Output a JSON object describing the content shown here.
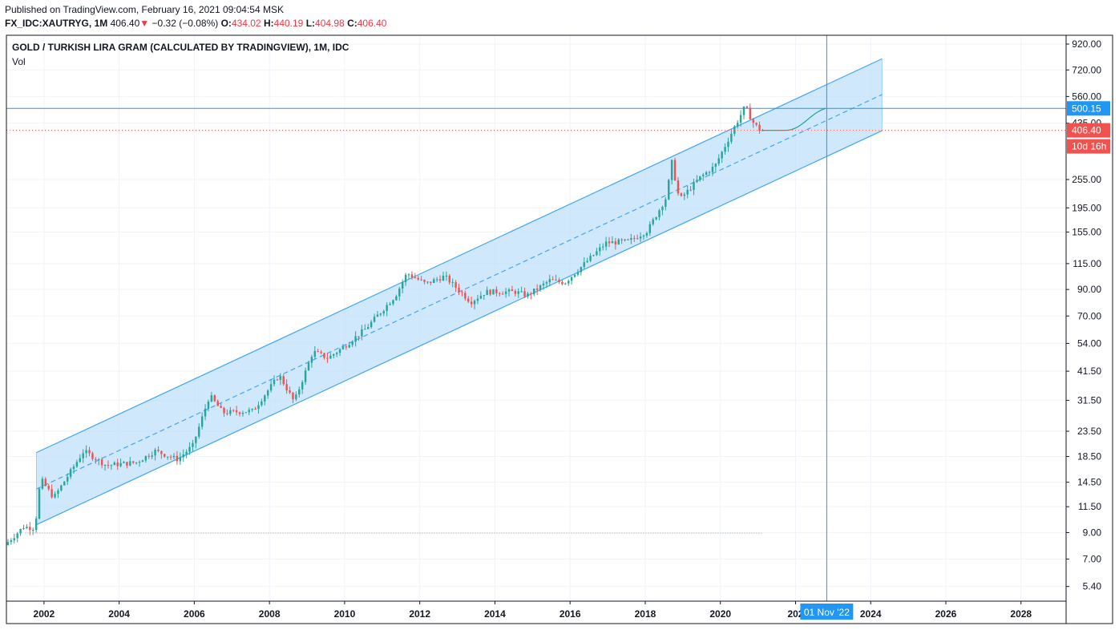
{
  "header": {
    "published": "Published on TradingView.com, February 16, 2021 09:04:54 MSK",
    "symbol": "FX_IDC:XAUTRYG, 1M",
    "last": "406.40",
    "change": "−0.32 (−0.08%)",
    "o_label": "O:",
    "o_value": "434.02",
    "h_label": "H:",
    "h_value": "440.19",
    "l_label": "L:",
    "l_value": "404.98",
    "c_label": "C:",
    "c_value": "406.40"
  },
  "chart_title": "GOLD / TURKISH LIRA GRAM (CALCULATED BY TRADINGVIEW), 1M, IDC",
  "volume_label": "Vol",
  "colors": {
    "up": "#26a69a",
    "down": "#ef5350",
    "channel_line": "#42a5f5",
    "channel_fill": "#bbdefb",
    "crosshair": "#2196f3",
    "grid": "#f0f3fa",
    "price_tag_last": "#ef5350",
    "price_tag_cross": "#2196f3"
  },
  "chart_data": {
    "type": "candlestick",
    "y_scale": "log",
    "ylim": [
      4.7,
      1000
    ],
    "x_range": [
      2001.0,
      2029.2
    ],
    "x_ticks": [
      "2002",
      "2004",
      "2006",
      "2008",
      "2010",
      "2012",
      "2014",
      "2016",
      "2018",
      "2020",
      "202",
      "2024",
      "2026",
      "2028"
    ],
    "y_ticks": [
      "920.00",
      "720.00",
      "560.00",
      "435.00",
      "255.00",
      "195.00",
      "155.00",
      "115.00",
      "90.00",
      "70.00",
      "54.00",
      "41.50",
      "31.50",
      "23.50",
      "18.50",
      "14.50",
      "11.50",
      "9.00",
      "7.00",
      "5.40"
    ],
    "price_path": [
      [
        2001.0,
        8.0
      ],
      [
        2001.5,
        9.5
      ],
      [
        2001.8,
        9.4
      ],
      [
        2001.95,
        15.0
      ],
      [
        2002.3,
        12.5
      ],
      [
        2002.8,
        16.5
      ],
      [
        2003.1,
        19.5
      ],
      [
        2003.7,
        17.0
      ],
      [
        2004.5,
        17.5
      ],
      [
        2005.0,
        19.5
      ],
      [
        2005.6,
        18.0
      ],
      [
        2006.0,
        20.5
      ],
      [
        2006.45,
        33.0
      ],
      [
        2006.8,
        28.0
      ],
      [
        2007.6,
        28.5
      ],
      [
        2008.3,
        40.0
      ],
      [
        2008.7,
        31.0
      ],
      [
        2009.2,
        50.0
      ],
      [
        2009.6,
        47.0
      ],
      [
        2010.0,
        52.0
      ],
      [
        2010.6,
        62.0
      ],
      [
        2011.4,
        85.0
      ],
      [
        2011.7,
        105.0
      ],
      [
        2012.2,
        95.0
      ],
      [
        2012.7,
        102.0
      ],
      [
        2013.4,
        80.0
      ],
      [
        2013.8,
        88.0
      ],
      [
        2014.6,
        88.0
      ],
      [
        2014.9,
        85.0
      ],
      [
        2015.5,
        98.0
      ],
      [
        2015.9,
        96.0
      ],
      [
        2016.6,
        122.0
      ],
      [
        2017.0,
        140.0
      ],
      [
        2017.6,
        142.0
      ],
      [
        2018.1,
        157.0
      ],
      [
        2018.6,
        215.0
      ],
      [
        2018.75,
        300.0
      ],
      [
        2018.95,
        210.0
      ],
      [
        2019.5,
        260.0
      ],
      [
        2019.9,
        290.0
      ],
      [
        2020.35,
        400.0
      ],
      [
        2020.7,
        510.0
      ],
      [
        2020.9,
        440.0
      ],
      [
        2021.1,
        406.4
      ]
    ],
    "channel": {
      "start_x": 2001.8,
      "end_x": 2024.3,
      "upper": [
        19.2,
        800.0
      ],
      "middle": [
        13.6,
        570.0
      ],
      "lower": [
        9.7,
        405.0
      ]
    },
    "projection": {
      "from_x": 2021.1,
      "to_x": 2022.8,
      "from_y": 406.4,
      "to_y": 500.15
    },
    "last_price": 406.4,
    "last_price_label": "406.40",
    "countdown_label": "10d 16h",
    "crosshair": {
      "x": 2022.83,
      "y": 500.15,
      "x_label": "01 Nov '22",
      "y_label": "500.15"
    },
    "reference_level": 8.95,
    "overlap_tick": "435.00"
  }
}
